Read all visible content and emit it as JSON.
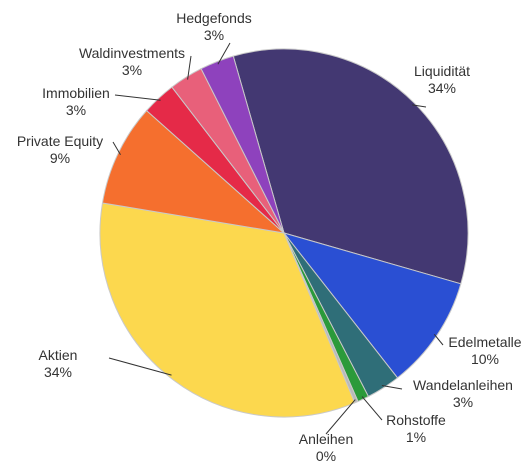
{
  "chart_data": {
    "type": "pie",
    "title": "",
    "start_angle_deg": 344,
    "slices": [
      {
        "label": "Liquidität",
        "pct_text": "34%",
        "value": 34,
        "color": "#433872"
      },
      {
        "label": "Edelmetalle",
        "pct_text": "10%",
        "value": 10,
        "color": "#2a4fd3"
      },
      {
        "label": "Wandelanleihen",
        "pct_text": "3%",
        "value": 3,
        "color": "#2f6e78"
      },
      {
        "label": "Rohstoffe",
        "pct_text": "1%",
        "value": 1,
        "color": "#2b9a3a"
      },
      {
        "label": "Anleihen",
        "pct_text": "0%",
        "value": 0.3,
        "color": "#b9b9b9"
      },
      {
        "label": "Aktien",
        "pct_text": "34%",
        "value": 34,
        "color": "#fcd84e"
      },
      {
        "label": "Private Equity",
        "pct_text": "9%",
        "value": 9,
        "color": "#f56f2e"
      },
      {
        "label": "Immobilien",
        "pct_text": "3%",
        "value": 3,
        "color": "#e52a48"
      },
      {
        "label": "Waldinvestments",
        "pct_text": "3%",
        "value": 3,
        "color": "#e8607a"
      },
      {
        "label": "Hedgefonds",
        "pct_text": "3%",
        "value": 3,
        "color": "#8e42bd"
      }
    ]
  }
}
